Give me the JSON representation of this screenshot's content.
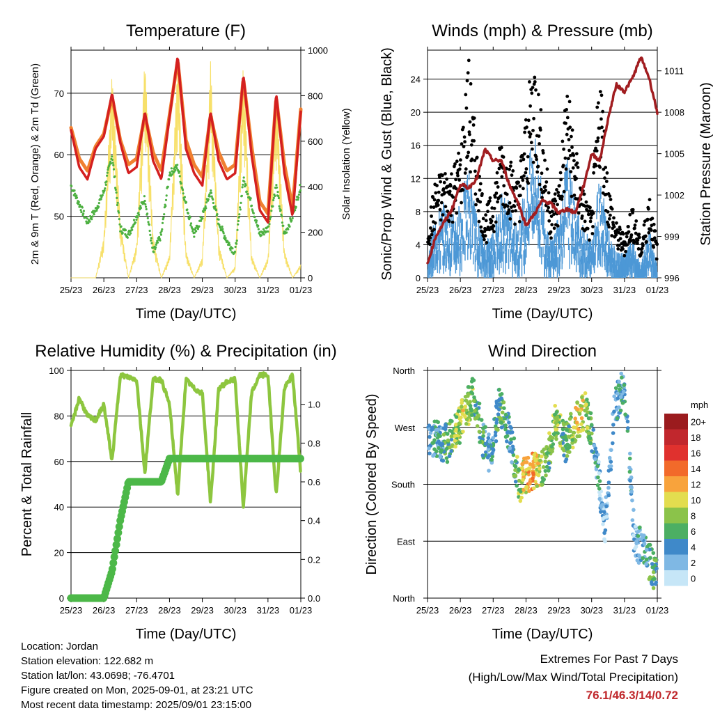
{
  "x_ticks": [
    "25/23",
    "26/23",
    "27/23",
    "28/23",
    "29/23",
    "30/23",
    "31/23",
    "01/23"
  ],
  "colors": {
    "temp_2m": "#d42020",
    "temp_9m": "#f08030",
    "dewpoint": "#4cb040",
    "solar": "#f7de62",
    "wind": "#4d98d6",
    "gust": "#000000",
    "pressure": "#a11d20",
    "rh": "#8dc63f",
    "precip": "#4cb848"
  },
  "info": {
    "location": "Location: Jordan",
    "elevation": "Station elevation: 122.682 m",
    "latlon": "Station lat/lon: 43.0698; -76.4701",
    "created": "Figure created on Mon, 2025-09-01, at 23:21 UTC",
    "recent": "Most recent data timestamp: 2025/09/01 23:15:00"
  },
  "extremes": {
    "line1": "Extremes For Past 7 Days",
    "line2": "(High/Low/Max Wind/Total Precipitation)",
    "values": "76.1/46.3/14/0.72"
  },
  "chart_data": [
    {
      "type": "line",
      "title": "Temperature (F)",
      "xlabel": "Time (Day/UTC)",
      "ylabel": "2m & 9m T (Red, Orange) & 2m Td (Green)",
      "ylabel_right": "Solar Insolation (Yellow)",
      "ylim": [
        40,
        77
      ],
      "yticks": [
        50,
        60,
        70
      ],
      "ylim_right": [
        0,
        1000
      ],
      "yticks_right": [
        0,
        200,
        400,
        600,
        800,
        1000
      ],
      "x": [
        0,
        0.25,
        0.5,
        0.75,
        1,
        1.25,
        1.5,
        1.75,
        2,
        2.25,
        2.5,
        2.75,
        3,
        3.25,
        3.5,
        3.75,
        4,
        4.25,
        4.5,
        4.75,
        5,
        5.25,
        5.5,
        5.75,
        6,
        6.25,
        6.5,
        6.75,
        7
      ],
      "series": [
        {
          "name": "2m T",
          "axis": "left",
          "values": [
            64,
            58,
            56,
            61,
            63,
            70,
            62,
            57,
            58,
            67,
            59,
            56,
            66,
            76,
            61,
            57,
            55,
            67,
            59,
            56,
            57,
            73,
            60,
            51,
            49,
            70,
            57,
            50,
            67
          ]
        },
        {
          "name": "9m T",
          "axis": "left",
          "values": [
            64,
            59,
            57,
            61,
            63,
            69,
            62,
            58,
            59,
            66,
            60,
            57,
            66,
            75,
            62,
            58,
            56,
            66,
            60,
            57,
            58,
            72,
            61,
            52,
            50,
            69,
            58,
            51,
            67
          ]
        },
        {
          "name": "2m Td",
          "axis": "left",
          "values": [
            55,
            52,
            49,
            51,
            54,
            60,
            48,
            47,
            50,
            53,
            44,
            47,
            57,
            58,
            52,
            47,
            50,
            54,
            49,
            46,
            44,
            56,
            52,
            47,
            48,
            55,
            47,
            50,
            55
          ]
        },
        {
          "name": "Solar Insolation",
          "axis": "right",
          "values": [
            0,
            0,
            0,
            0,
            180,
            900,
            250,
            0,
            150,
            980,
            180,
            0,
            100,
            980,
            120,
            0,
            90,
            950,
            150,
            0,
            50,
            950,
            100,
            0,
            90,
            850,
            120,
            0,
            60
          ]
        }
      ]
    },
    {
      "type": "line",
      "title": "Winds (mph) & Pressure (mb)",
      "xlabel": "Time (Day/UTC)",
      "ylabel": "Sonic/Prop Wind & Gust (Blue, Black)",
      "ylabel_right": "Station Pressure (Maroon)",
      "ylim": [
        0,
        27.5
      ],
      "yticks": [
        0,
        4,
        8,
        12,
        16,
        20,
        24
      ],
      "ylim_right": [
        996,
        1012.5
      ],
      "yticks_right": [
        996,
        999,
        1002,
        1005,
        1008,
        1011
      ],
      "x": [
        0,
        0.25,
        0.5,
        0.75,
        1,
        1.25,
        1.5,
        1.75,
        2,
        2.25,
        2.5,
        2.75,
        3,
        3.25,
        3.5,
        3.75,
        4,
        4.25,
        4.5,
        4.75,
        5,
        5.25,
        5.5,
        5.75,
        6,
        6.25,
        6.5,
        6.75,
        7
      ],
      "series": [
        {
          "name": "Wind",
          "axis": "left",
          "values": [
            2,
            5,
            6,
            5,
            6,
            9,
            5,
            3,
            4,
            7,
            6,
            4,
            8,
            12,
            7,
            3,
            5,
            10,
            6,
            4,
            3,
            9,
            4,
            2,
            2,
            3,
            1,
            4,
            1
          ]
        },
        {
          "name": "Gust",
          "axis": "left",
          "values": [
            5,
            9,
            10,
            10,
            12,
            20,
            12,
            6,
            8,
            13,
            11,
            9,
            15,
            21,
            14,
            7,
            9,
            18,
            12,
            8,
            6,
            20,
            9,
            5,
            4,
            7,
            3,
            8,
            3
          ]
        },
        {
          "name": "Station Pressure",
          "axis": "right",
          "values": [
            997,
            999,
            1000,
            1001,
            1002.8,
            1002.5,
            1003.2,
            1005.3,
            1004.5,
            1004.5,
            1002.7,
            1001.5,
            999.8,
            1000.6,
            1001.6,
            1001.4,
            1000.7,
            1001.0,
            1000.7,
            1002.6,
            1005.0,
            1004.5,
            1007.5,
            1010.0,
            1009.5,
            1010.5,
            1012.0,
            1010.5,
            1008.0
          ]
        }
      ]
    },
    {
      "type": "line",
      "title": "Relative Humidity (%) & Precipitation (in)",
      "xlabel": "Time (Day/UTC)",
      "ylabel": "Percent & Total Rainfall",
      "ylim": [
        0,
        100
      ],
      "yticks": [
        0,
        20,
        40,
        60,
        80,
        100
      ],
      "ylim_right": [
        0,
        1.175
      ],
      "yticks_right": [
        0.0,
        0.2,
        0.4,
        0.6,
        0.8,
        1.0
      ],
      "x": [
        0,
        0.25,
        0.5,
        0.75,
        1,
        1.25,
        1.5,
        1.75,
        2,
        2.25,
        2.5,
        2.75,
        3,
        3.25,
        3.5,
        3.75,
        4,
        4.25,
        4.5,
        4.75,
        5,
        5.25,
        5.5,
        5.75,
        6,
        6.25,
        6.5,
        6.75,
        7
      ],
      "series": [
        {
          "name": "Relative Humidity",
          "axis": "left",
          "values": [
            75,
            88,
            80,
            78,
            85,
            60,
            98,
            97,
            96,
            55,
            96,
            96,
            85,
            45,
            96,
            92,
            90,
            42,
            92,
            95,
            96,
            40,
            90,
            98,
            98,
            45,
            92,
            98,
            55
          ]
        },
        {
          "name": "Total Rainfall",
          "axis": "right",
          "values": [
            0,
            0,
            0,
            0,
            0,
            0.14,
            0.4,
            0.6,
            0.6,
            0.6,
            0.6,
            0.6,
            0.72,
            0.72,
            0.72,
            0.72,
            0.72,
            0.72,
            0.72,
            0.72,
            0.72,
            0.72,
            0.72,
            0.72,
            0.72,
            0.72,
            0.72,
            0.72,
            0.72
          ]
        }
      ]
    },
    {
      "type": "scatter",
      "title": "Wind Direction",
      "xlabel": "Time (Day/UTC)",
      "ylabel": "Direction (Colored By Speed)",
      "yticks": [
        "North",
        "East",
        "South",
        "West",
        "North"
      ],
      "ylim": [
        0,
        360
      ],
      "colorbar_title": "mph",
      "colorbar_labels": [
        "20+",
        "18",
        "16",
        "14",
        "12",
        "10",
        "8",
        "6",
        "4",
        "2",
        "0"
      ],
      "colorbar_colors": [
        "#9b1b1e",
        "#c1272d",
        "#e0312e",
        "#f26a2a",
        "#f8a33c",
        "#e3dd4f",
        "#8bc34a",
        "#4caf63",
        "#3f89c9",
        "#7fb8e4",
        "#c6e6f7"
      ],
      "x": [
        0.3,
        0.6,
        0.9,
        1.1,
        1.4,
        1.7,
        1.9,
        2.2,
        2.5,
        2.8,
        3.0,
        3.2,
        3.6,
        3.9,
        4.2,
        4.5,
        4.8,
        5.1,
        5.4,
        5.7,
        6.0,
        6.3,
        6.6,
        6.9
      ],
      "values": [
        250,
        245,
        265,
        290,
        320,
        250,
        225,
        310,
        260,
        180,
        195,
        200,
        210,
        280,
        245,
        275,
        300,
        240,
        110,
        300,
        340,
        90,
        80,
        40
      ],
      "speeds": [
        4,
        6,
        8,
        9,
        7,
        5,
        4,
        6,
        4,
        8,
        11,
        13,
        6,
        9,
        5,
        10,
        9,
        4,
        2,
        3,
        5,
        2,
        4,
        6
      ]
    }
  ]
}
